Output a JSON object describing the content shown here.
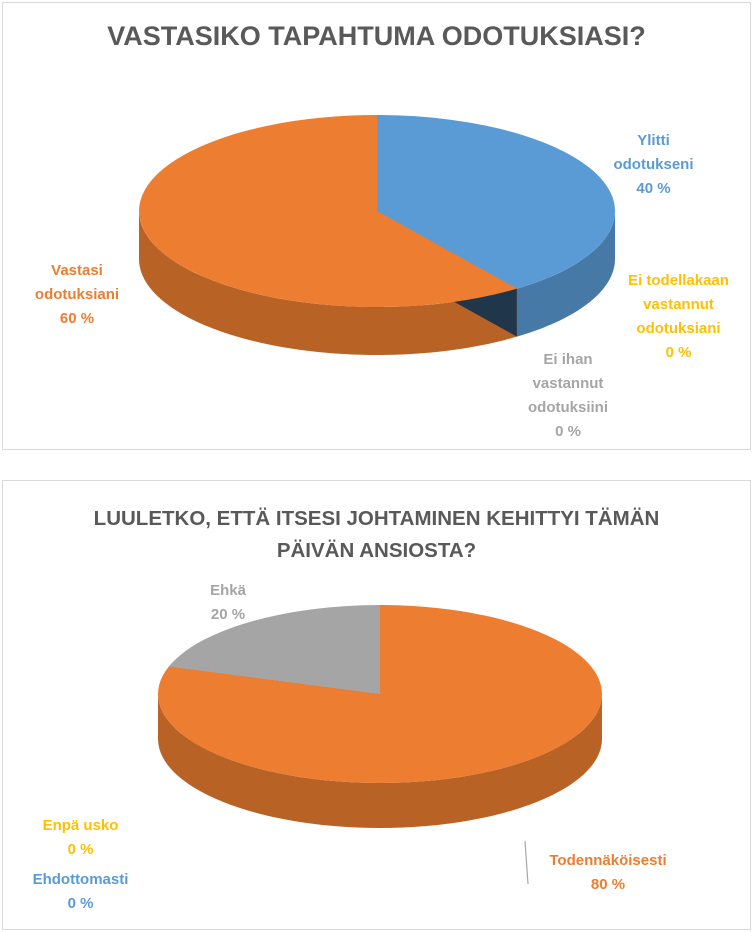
{
  "colors": {
    "title": "#595959",
    "blue": "#5b9bd5",
    "orange": "#ed7d31",
    "yellow": "#ffc000",
    "gray": "#a5a5a5"
  },
  "chart_data": [
    {
      "type": "pie",
      "title": "VASTASIKO TAPAHTUMA ODOTUKSIASI?",
      "slices": [
        {
          "label": "Ylitti odotukseni",
          "value": 40,
          "value_text": "40 %",
          "color": "#5b9bd5"
        },
        {
          "label": "Ei todellakaan vastannut odotuksiani",
          "value": 0,
          "value_text": "0 %",
          "color": "#ffc000"
        },
        {
          "label": "Ei ihan vastannut odotuksiini",
          "value": 0,
          "value_text": "0 %",
          "color": "#a5a5a5"
        },
        {
          "label": "Vastasi odotuksiani",
          "value": 60,
          "value_text": "60 %",
          "color": "#ed7d31"
        }
      ]
    },
    {
      "type": "pie",
      "title": "LUULETKO, ETTÄ ITSESI JOHTAMINEN KEHITTYI TÄMÄN PÄIVÄN ANSIOSTA?",
      "slices": [
        {
          "label": "Ehdottomasti",
          "value": 0,
          "value_text": "0 %",
          "color": "#5b9bd5"
        },
        {
          "label": "Todennäköisesti",
          "value": 80,
          "value_text": "80 %",
          "color": "#ed7d31"
        },
        {
          "label": "Enpä usko",
          "value": 0,
          "value_text": "0 %",
          "color": "#ffc000"
        },
        {
          "label": "Ehkä",
          "value": 20,
          "value_text": "20 %",
          "color": "#a5a5a5"
        }
      ]
    }
  ]
}
